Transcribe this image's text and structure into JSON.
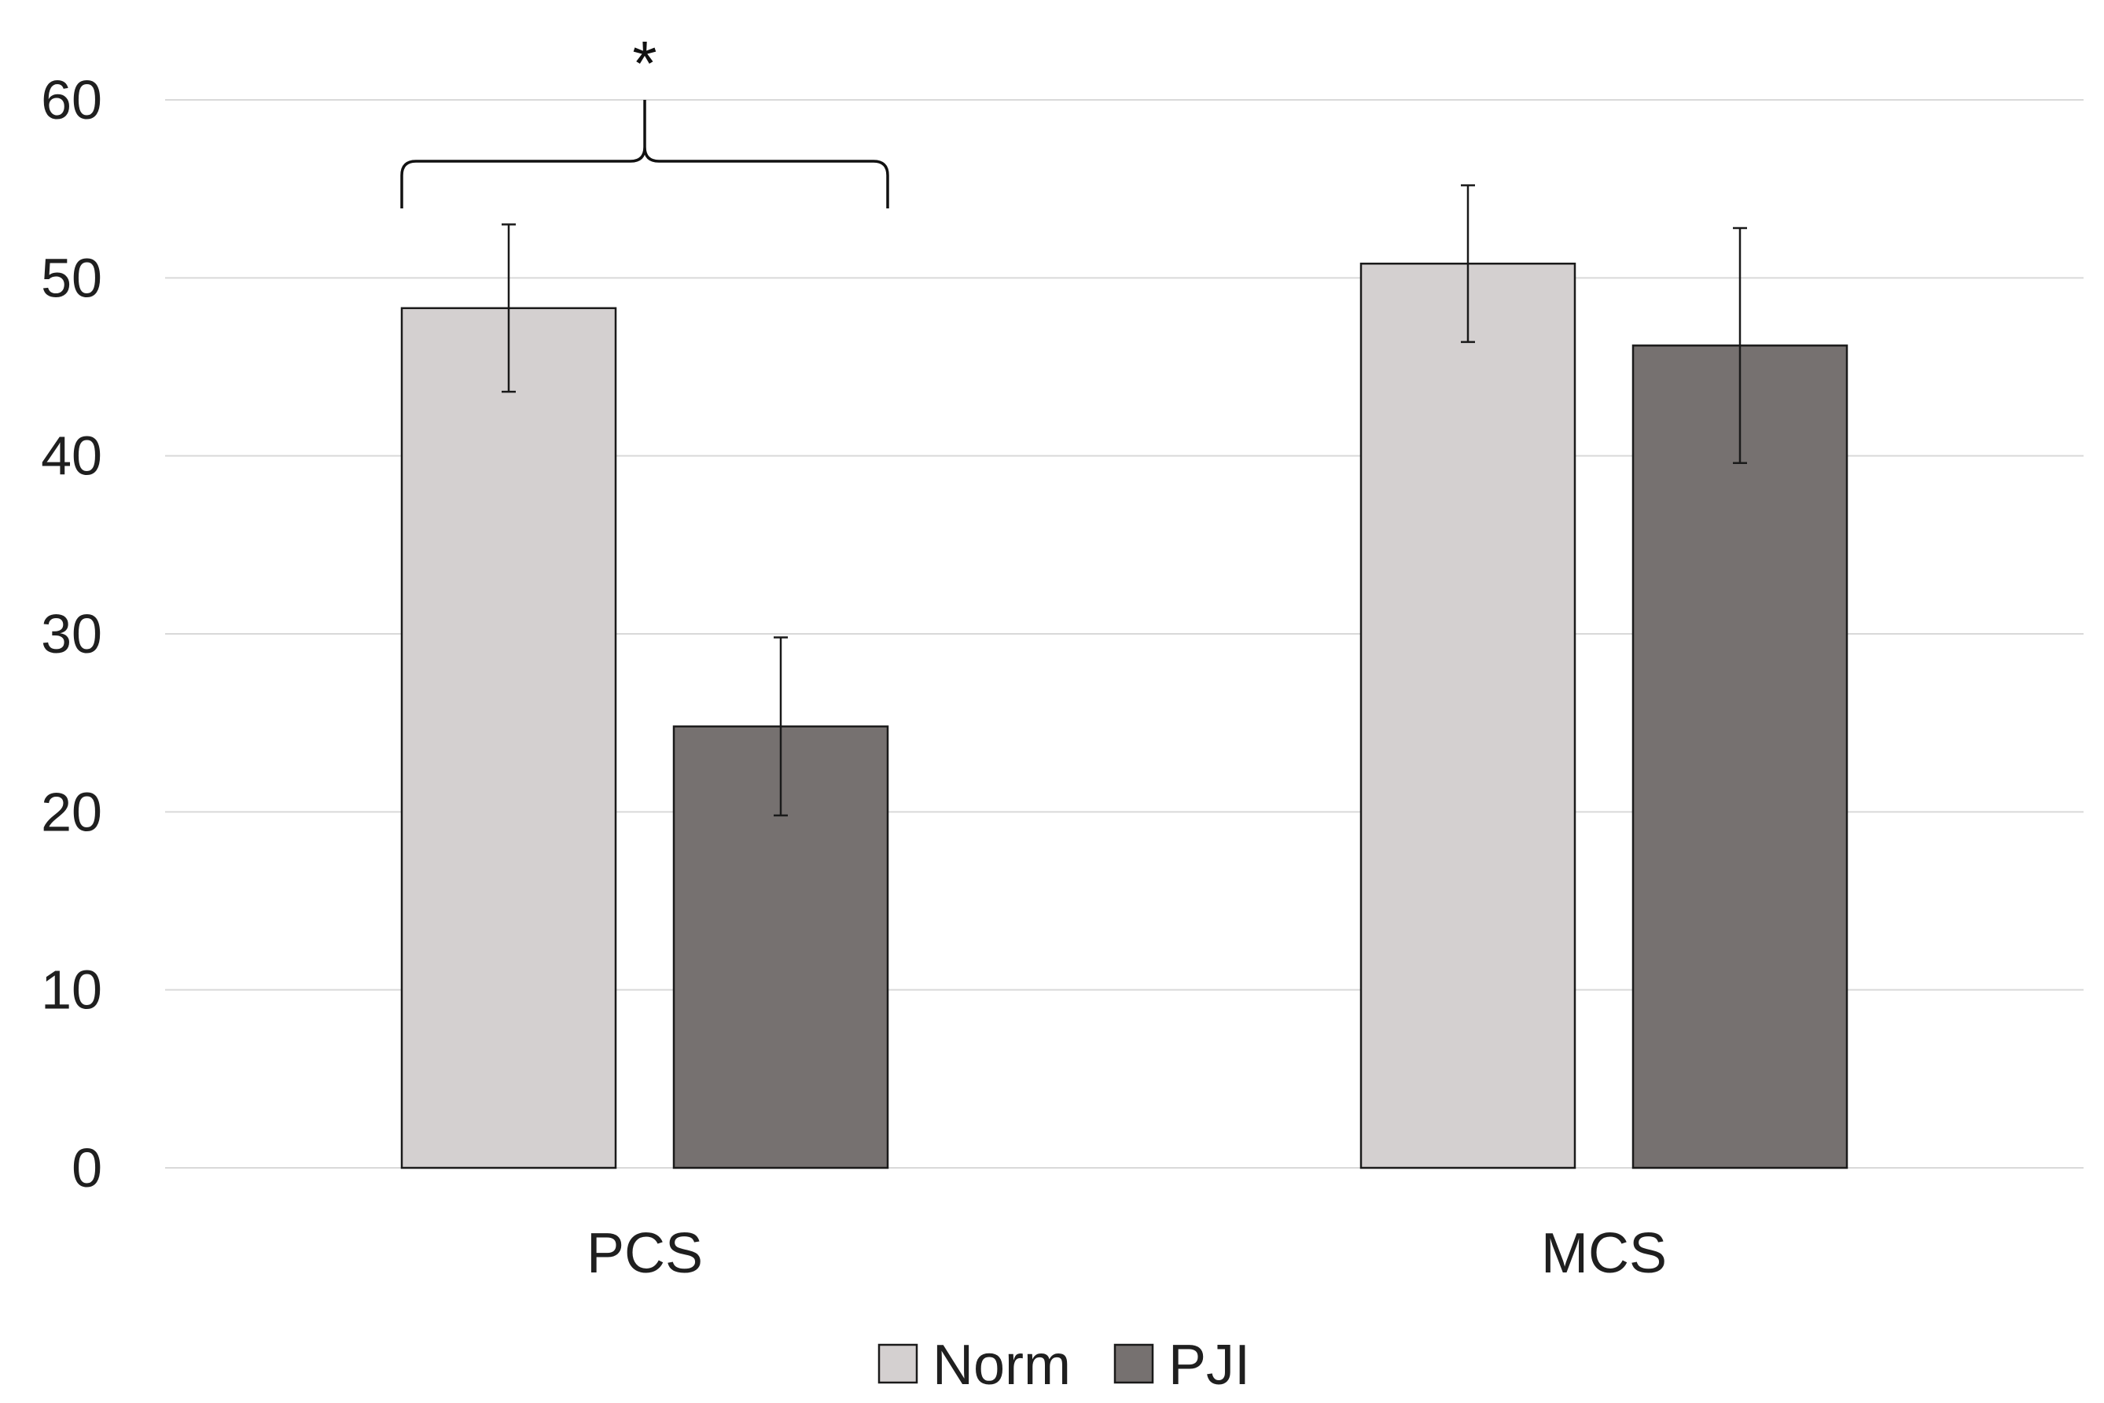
{
  "chart_data": {
    "type": "bar",
    "title": "",
    "xlabel": "",
    "ylabel": "",
    "categories": [
      "PCS",
      "MCS"
    ],
    "series": [
      {
        "name": "Norm",
        "values": [
          48.3,
          50.8
        ],
        "errors": [
          4.7,
          4.4
        ],
        "color": "#d4d0d0"
      },
      {
        "name": "PJI",
        "values": [
          24.8,
          46.2
        ],
        "errors": [
          5.0,
          6.6
        ],
        "color": "#767170"
      }
    ],
    "ylim": [
      0,
      60
    ],
    "yticks": [
      0,
      10,
      20,
      30,
      40,
      50,
      60
    ],
    "grid": true,
    "legend_position": "bottom-center",
    "annotations": [
      {
        "text": "*",
        "category": "PCS",
        "note": "bracket spanning Norm and PJI"
      }
    ],
    "colors": {
      "grid": "#d9d9d9",
      "bar_edge": "#1a1a1a",
      "error_bar": "#1a1a1a"
    }
  }
}
